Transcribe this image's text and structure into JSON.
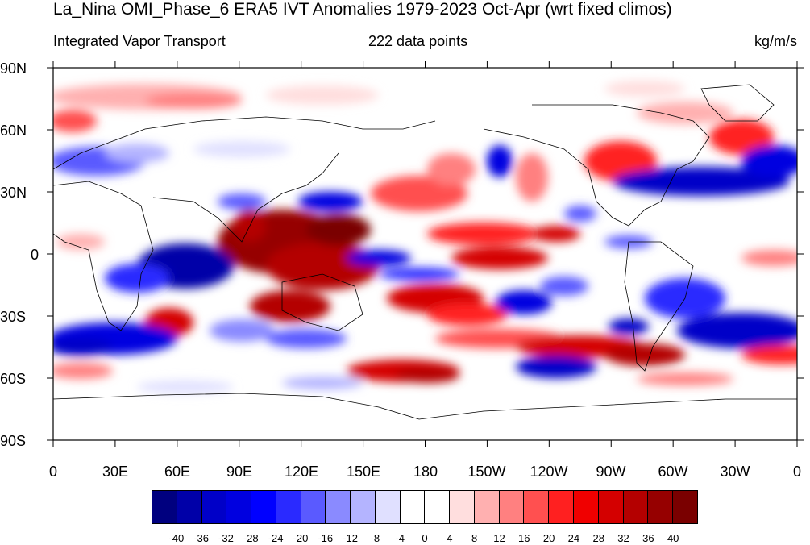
{
  "title": "La_Nina OMI_Phase_6 ERA5 IVT Anomalies 1979-2023 Oct-Apr (wrt fixed climos)",
  "subtitle_left": "Integrated Vapor Transport",
  "subtitle_center": "222 data points",
  "subtitle_right": "kg/m/s",
  "map": {
    "lat_labels": [
      "90N",
      "60N",
      "30N",
      "0",
      "30S",
      "60S",
      "90S"
    ],
    "lon_labels": [
      "0",
      "30E",
      "60E",
      "90E",
      "120E",
      "150E",
      "180",
      "150W",
      "120W",
      "90W",
      "60W",
      "30W",
      "0"
    ]
  },
  "colorbar": {
    "colors": [
      "#00007f",
      "#0000a8",
      "#0000c8",
      "#0000e0",
      "#0000ff",
      "#2a2aff",
      "#5a5aff",
      "#8a8aff",
      "#b4b4ff",
      "#e0e0ff",
      "#ffffff",
      "#ffffff",
      "#ffdede",
      "#ffb0b0",
      "#ff8080",
      "#ff5050",
      "#ff2020",
      "#f00000",
      "#d40000",
      "#b40000",
      "#960000",
      "#7a0000"
    ],
    "tick_labels": [
      "-40",
      "-36",
      "-32",
      "-28",
      "-24",
      "-20",
      "-16",
      "-12",
      "-8",
      "-4",
      "0",
      "4",
      "8",
      "12",
      "16",
      "20",
      "24",
      "28",
      "32",
      "36",
      "40"
    ]
  }
}
